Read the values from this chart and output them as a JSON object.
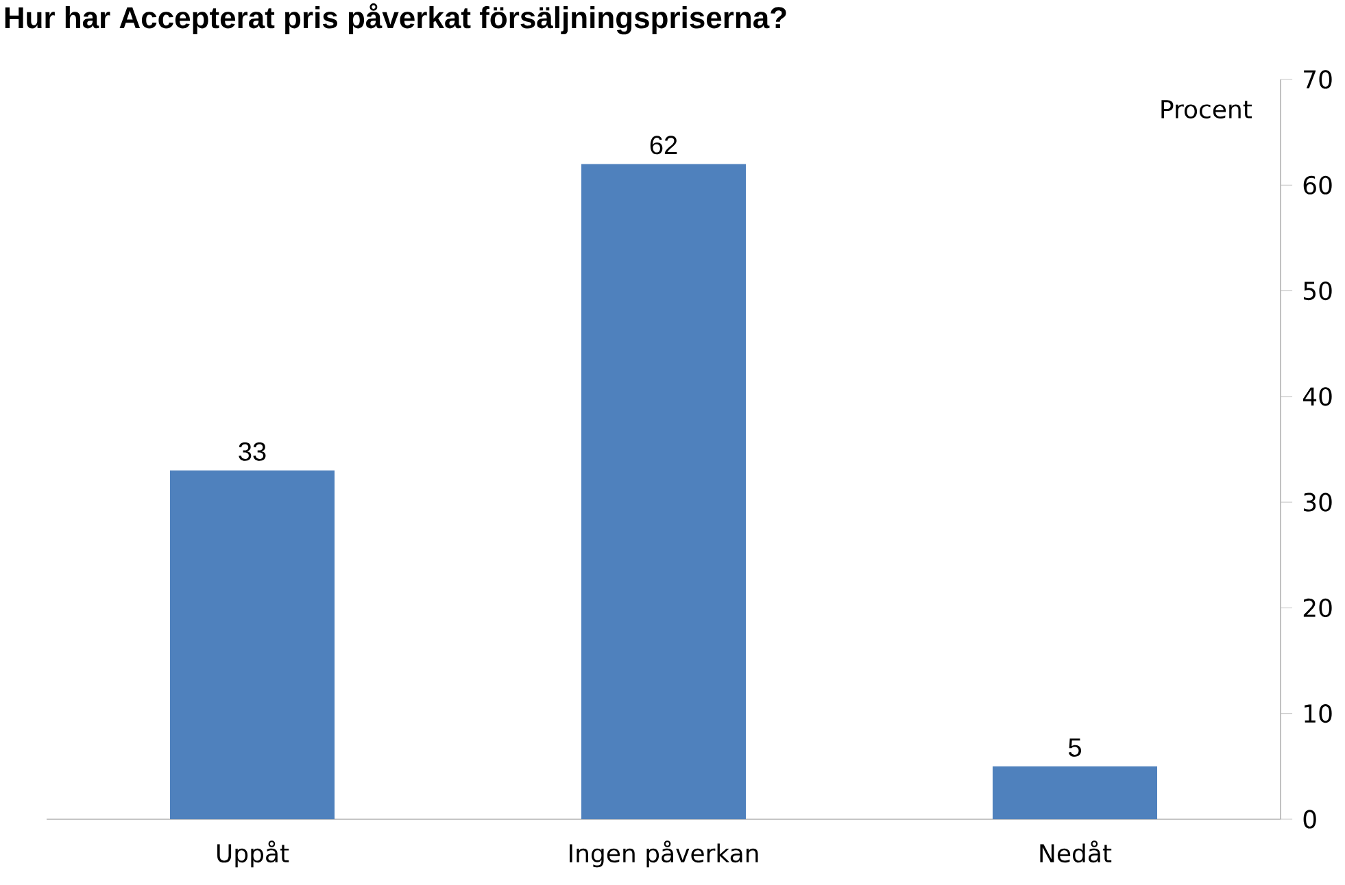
{
  "chart_data": {
    "type": "bar",
    "title": "Hur har Accepterat pris påverkat försäljningspriserna?",
    "ylabel": "Procent",
    "categories": [
      "Uppåt",
      "Ingen påverkan",
      "Nedåt"
    ],
    "values": [
      33,
      62,
      5
    ],
    "color": "#4f81bd",
    "data_labels": true,
    "ylim": [
      0,
      70
    ],
    "yticks": [
      0,
      10,
      20,
      30,
      40,
      50,
      60,
      70
    ]
  }
}
